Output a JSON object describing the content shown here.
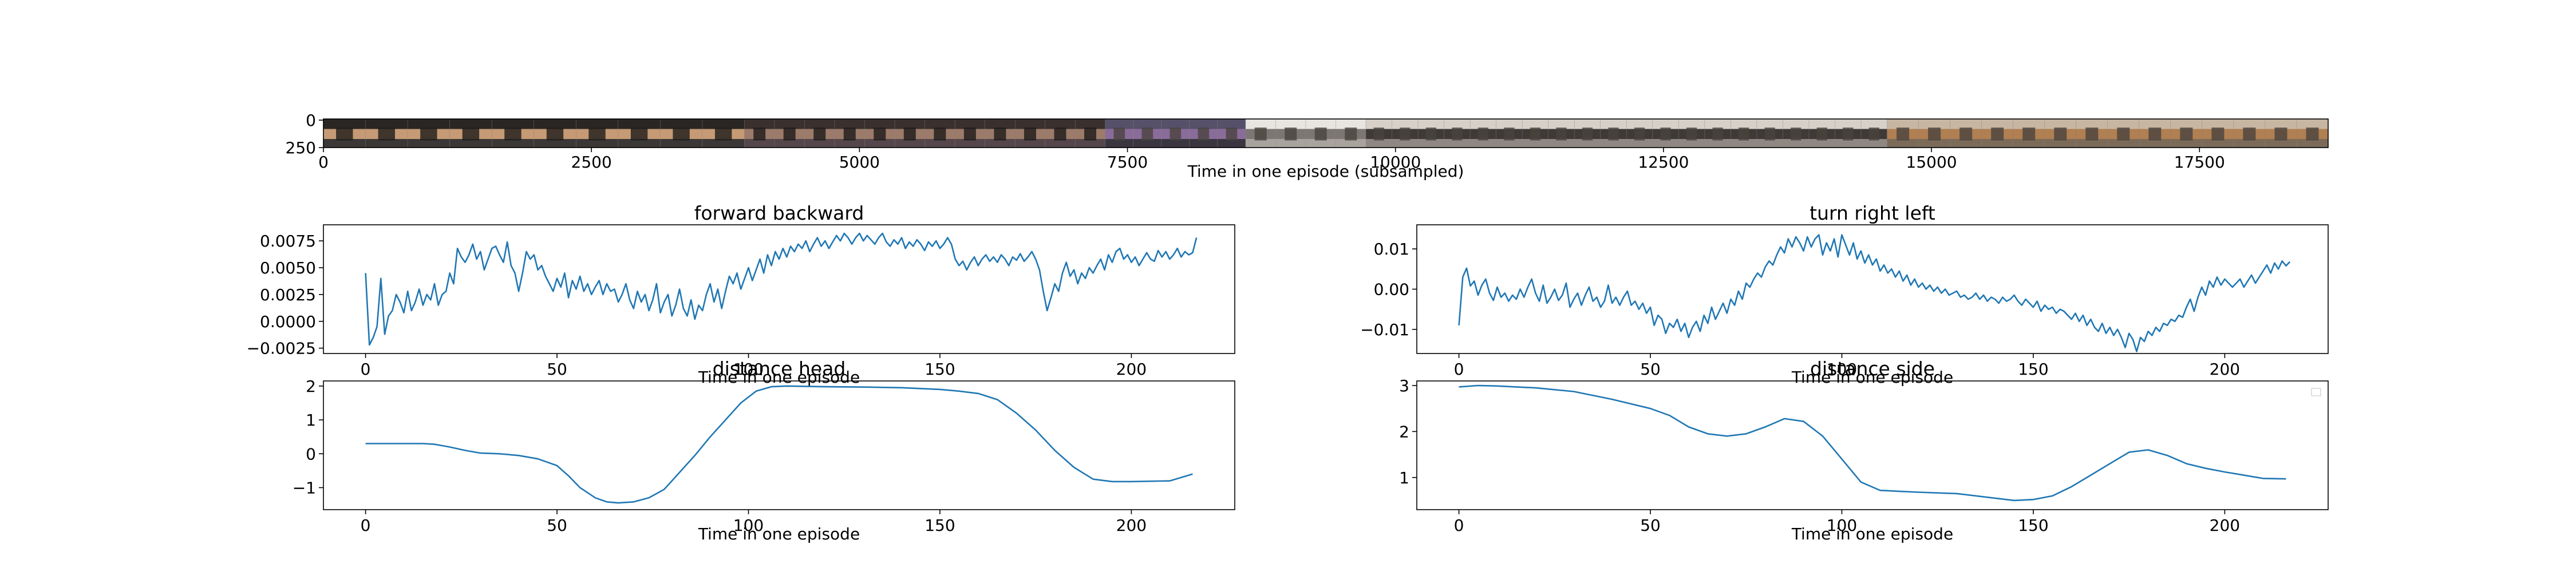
{
  "chart_data": [
    {
      "id": "strip",
      "type": "image-strip",
      "xlabel": "Time in one episode (subsampled)",
      "xticks": [
        0,
        2500,
        5000,
        7500,
        10000,
        12500,
        15000,
        17500
      ],
      "yticks": [
        0,
        250
      ],
      "xlim": [
        0,
        18700
      ],
      "ylim": [
        250,
        0
      ]
    },
    {
      "id": "forward",
      "type": "line",
      "title": "forward backward",
      "xlabel": "Time in one episode",
      "ylabel": "",
      "xlim": [
        -11,
        227
      ],
      "ylim": [
        -0.003,
        0.009
      ],
      "xticks": [
        0,
        50,
        100,
        150,
        200
      ],
      "yticks": [
        -0.0025,
        0.0,
        0.0025,
        0.005,
        0.0075
      ],
      "ytick_labels": [
        "−0.0025",
        "0.0000",
        "0.0025",
        "0.0050",
        "0.0075"
      ],
      "color": "#1f77b4",
      "series": [
        {
          "values": [
            0.0045,
            -0.0022,
            -0.0015,
            -0.0005,
            0.004,
            -0.0012,
            0.0005,
            0.001,
            0.0025,
            0.0018,
            0.0008,
            0.0028,
            0.001,
            0.0018,
            0.003,
            0.0015,
            0.0025,
            0.002,
            0.0035,
            0.0015,
            0.0025,
            0.0028,
            0.0045,
            0.0035,
            0.0068,
            0.006,
            0.0055,
            0.0062,
            0.0072,
            0.0058,
            0.0065,
            0.0048,
            0.0058,
            0.0068,
            0.007,
            0.0062,
            0.0055,
            0.0074,
            0.0052,
            0.0045,
            0.0028,
            0.0045,
            0.0065,
            0.0058,
            0.0062,
            0.0048,
            0.0052,
            0.0042,
            0.0035,
            0.0028,
            0.004,
            0.0032,
            0.0045,
            0.0022,
            0.0038,
            0.003,
            0.0042,
            0.0028,
            0.0035,
            0.0025,
            0.0032,
            0.0038,
            0.0025,
            0.0035,
            0.0028,
            0.003,
            0.0018,
            0.0025,
            0.0035,
            0.002,
            0.0012,
            0.0028,
            0.0018,
            0.0025,
            0.001,
            0.002,
            0.0035,
            0.0008,
            0.0018,
            0.0025,
            0.0005,
            0.0015,
            0.003,
            0.0012,
            0.0005,
            0.002,
            0.0002,
            0.0015,
            0.001,
            0.0025,
            0.0035,
            0.0018,
            0.003,
            0.0012,
            0.0028,
            0.0042,
            0.0035,
            0.0045,
            0.003,
            0.004,
            0.005,
            0.0038,
            0.0048,
            0.0058,
            0.0045,
            0.0062,
            0.0052,
            0.0065,
            0.0058,
            0.0068,
            0.006,
            0.007,
            0.0065,
            0.0072,
            0.0068,
            0.0075,
            0.0065,
            0.0072,
            0.0078,
            0.007,
            0.0075,
            0.0068,
            0.0074,
            0.008,
            0.0075,
            0.0082,
            0.0078,
            0.0072,
            0.0078,
            0.0082,
            0.0075,
            0.008,
            0.0076,
            0.0072,
            0.0078,
            0.0082,
            0.0074,
            0.007,
            0.0076,
            0.0072,
            0.0078,
            0.0068,
            0.0074,
            0.007,
            0.0076,
            0.0072,
            0.0066,
            0.0074,
            0.007,
            0.0075,
            0.0068,
            0.0072,
            0.0078,
            0.0072,
            0.0058,
            0.0052,
            0.0056,
            0.0048,
            0.0055,
            0.006,
            0.0052,
            0.0058,
            0.0062,
            0.0056,
            0.006,
            0.0055,
            0.0062,
            0.0058,
            0.0052,
            0.006,
            0.0057,
            0.0063,
            0.0056,
            0.006,
            0.0065,
            0.0058,
            0.0048,
            0.0028,
            0.001,
            0.0022,
            0.0035,
            0.0028,
            0.0045,
            0.0055,
            0.0042,
            0.0048,
            0.0035,
            0.0045,
            0.004,
            0.005,
            0.0045,
            0.0052,
            0.0058,
            0.0048,
            0.0062,
            0.0055,
            0.0065,
            0.0068,
            0.0058,
            0.0062,
            0.0055,
            0.006,
            0.0052,
            0.0058,
            0.0064,
            0.0058,
            0.0056,
            0.0066,
            0.006,
            0.0065,
            0.0058,
            0.0062,
            0.0068,
            0.006,
            0.0065,
            0.0062,
            0.0064,
            0.0078
          ]
        }
      ]
    },
    {
      "id": "turn",
      "type": "line",
      "title": "turn right left",
      "xlabel": "Time in one episode",
      "ylabel": "",
      "xlim": [
        -11,
        227
      ],
      "ylim": [
        -0.016,
        0.016
      ],
      "xticks": [
        0,
        50,
        100,
        150,
        200
      ],
      "yticks": [
        -0.01,
        0.0,
        0.01
      ],
      "ytick_labels": [
        "−0.01",
        "0.00",
        "0.01"
      ],
      "color": "#1f77b4",
      "series": [
        {
          "values": [
            -0.009,
            0.003,
            0.0052,
            0.0008,
            0.002,
            -0.0015,
            0.001,
            0.0025,
            -0.001,
            -0.0028,
            0.0005,
            -0.002,
            -0.001,
            -0.003,
            -0.0015,
            -0.0025,
            0.0,
            -0.002,
            0.0005,
            0.0025,
            -0.001,
            -0.003,
            0.001,
            -0.0035,
            -0.002,
            0.0,
            -0.0028,
            -0.0015,
            0.0015,
            -0.0045,
            -0.0025,
            -0.001,
            -0.004,
            -0.0015,
            0.0005,
            -0.003,
            -0.002,
            -0.0045,
            -0.003,
            0.001,
            -0.0035,
            -0.002,
            -0.004,
            -0.002,
            -0.0005,
            -0.004,
            -0.003,
            -0.005,
            -0.0035,
            -0.006,
            -0.0045,
            -0.009,
            -0.0065,
            -0.0075,
            -0.011,
            -0.0085,
            -0.0095,
            -0.0075,
            -0.0105,
            -0.0085,
            -0.012,
            -0.0095,
            -0.008,
            -0.0105,
            -0.0065,
            -0.0085,
            -0.0045,
            -0.0075,
            -0.0055,
            -0.0035,
            -0.006,
            -0.0025,
            -0.004,
            -0.0005,
            -0.0025,
            0.0015,
            0.0005,
            0.0025,
            0.004,
            0.003,
            0.0055,
            0.007,
            0.006,
            0.0085,
            0.0105,
            0.009,
            0.0125,
            0.0105,
            0.013,
            0.0115,
            0.0095,
            0.013,
            0.0105,
            0.0125,
            0.0135,
            0.0085,
            0.0115,
            0.0095,
            0.0125,
            0.008,
            0.0135,
            0.011,
            0.0085,
            0.0115,
            0.0075,
            0.0095,
            0.0065,
            0.0085,
            0.006,
            0.0075,
            0.0045,
            0.006,
            0.004,
            0.005,
            0.003,
            0.0045,
            0.002,
            0.0035,
            0.001,
            0.0025,
            0.0005,
            0.0015,
            0.0,
            0.001,
            -0.0005,
            0.0005,
            -0.001,
            0.0,
            -0.0015,
            -0.001,
            -0.0005,
            -0.002,
            -0.0015,
            -0.0025,
            -0.002,
            -0.001,
            -0.0025,
            -0.0015,
            -0.003,
            -0.002,
            -0.0025,
            -0.0035,
            -0.002,
            -0.003,
            -0.0025,
            -0.0015,
            -0.003,
            -0.004,
            -0.0025,
            -0.0035,
            -0.0045,
            -0.003,
            -0.0055,
            -0.004,
            -0.005,
            -0.0045,
            -0.006,
            -0.005,
            -0.0055,
            -0.0065,
            -0.0075,
            -0.006,
            -0.008,
            -0.0065,
            -0.009,
            -0.0075,
            -0.0095,
            -0.0105,
            -0.0085,
            -0.011,
            -0.0095,
            -0.0115,
            -0.01,
            -0.012,
            -0.0145,
            -0.011,
            -0.0125,
            -0.0155,
            -0.012,
            -0.013,
            -0.0105,
            -0.0115,
            -0.0095,
            -0.0105,
            -0.0085,
            -0.009,
            -0.0075,
            -0.008,
            -0.0065,
            -0.007,
            -0.0045,
            -0.0025,
            -0.0055,
            -0.002,
            0.0005,
            -0.0015,
            0.002,
            0.0005,
            0.003,
            0.001,
            0.0025,
            0.0015,
            0.0005,
            0.0015,
            0.0025,
            0.0005,
            0.002,
            0.0035,
            0.0015,
            0.003,
            0.0045,
            0.006,
            0.004,
            0.0065,
            0.005,
            0.007,
            0.0058,
            0.0068
          ]
        }
      ]
    },
    {
      "id": "head",
      "type": "line",
      "title": "distance head",
      "xlabel": "Time in one episode",
      "ylabel": "",
      "xlim": [
        -11,
        227
      ],
      "ylim": [
        -1.65,
        2.15
      ],
      "xticks": [
        0,
        50,
        100,
        150,
        200
      ],
      "yticks": [
        -1,
        0,
        1,
        2
      ],
      "ytick_labels": [
        "−1",
        "0",
        "1",
        "2"
      ],
      "color": "#1f77b4",
      "series": [
        {
          "x": [
            0,
            5,
            10,
            15,
            18,
            22,
            26,
            30,
            35,
            40,
            45,
            50,
            53,
            56,
            60,
            63,
            66,
            70,
            74,
            78,
            82,
            86,
            90,
            94,
            98,
            102,
            106,
            110,
            120,
            130,
            140,
            150,
            155,
            160,
            165,
            170,
            175,
            180,
            185,
            190,
            195,
            200,
            210,
            216
          ],
          "values": [
            0.3,
            0.3,
            0.3,
            0.3,
            0.28,
            0.2,
            0.1,
            0.02,
            0.0,
            -0.05,
            -0.15,
            -0.35,
            -0.65,
            -1.0,
            -1.3,
            -1.42,
            -1.45,
            -1.42,
            -1.3,
            -1.05,
            -0.55,
            -0.05,
            0.5,
            1.0,
            1.5,
            1.85,
            1.98,
            2.0,
            1.98,
            1.97,
            1.95,
            1.9,
            1.85,
            1.78,
            1.6,
            1.2,
            0.7,
            0.1,
            -0.4,
            -0.75,
            -0.82,
            -0.82,
            -0.8,
            -0.6
          ]
        }
      ]
    },
    {
      "id": "side",
      "type": "line",
      "title": "distance side",
      "xlabel": "Time in one episode",
      "ylabel": "",
      "xlim": [
        -11,
        227
      ],
      "ylim": [
        0.3,
        3.1
      ],
      "xticks": [
        0,
        50,
        100,
        150,
        200
      ],
      "yticks": [
        1,
        2,
        3
      ],
      "ytick_labels": [
        "1",
        "2",
        "3"
      ],
      "color": "#1f77b4",
      "legend": "top-right",
      "series": [
        {
          "x": [
            0,
            5,
            10,
            20,
            30,
            40,
            50,
            55,
            60,
            65,
            70,
            75,
            80,
            85,
            90,
            95,
            100,
            105,
            110,
            115,
            120,
            130,
            140,
            145,
            150,
            155,
            160,
            165,
            170,
            175,
            180,
            185,
            190,
            195,
            200,
            205,
            210,
            216
          ],
          "values": [
            2.97,
            3.0,
            2.99,
            2.95,
            2.87,
            2.7,
            2.5,
            2.35,
            2.1,
            1.95,
            1.9,
            1.95,
            2.1,
            2.28,
            2.22,
            1.9,
            1.4,
            0.9,
            0.72,
            0.7,
            0.68,
            0.65,
            0.55,
            0.5,
            0.52,
            0.6,
            0.8,
            1.05,
            1.3,
            1.55,
            1.6,
            1.48,
            1.3,
            1.2,
            1.12,
            1.05,
            0.98,
            0.97
          ]
        }
      ]
    }
  ]
}
